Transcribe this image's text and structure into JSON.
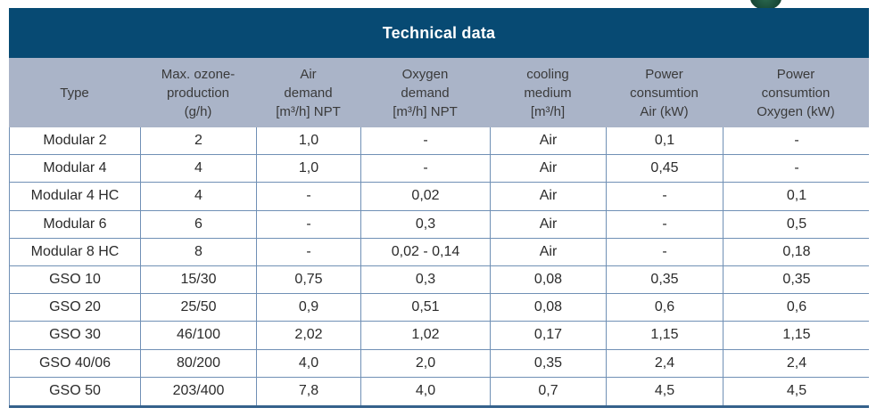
{
  "title": "Technical data",
  "colors": {
    "title_bar_bg": "#074a73",
    "title_text": "#ffffff",
    "header_band_bg": "#aab4c8",
    "header_text": "#3a3a3a",
    "grid_line": "#7090b5",
    "bottom_rule": "#35618c",
    "body_text": "#2b2b2b",
    "logo_green": "#1b4f3c"
  },
  "columns": [
    {
      "lines": [
        "Type"
      ]
    },
    {
      "lines": [
        "Max. ozone-",
        "production",
        "(g/h)"
      ]
    },
    {
      "lines": [
        "Air",
        "demand",
        "[m³/h] NPT"
      ]
    },
    {
      "lines": [
        "Oxygen",
        "demand",
        "[m³/h] NPT"
      ]
    },
    {
      "lines": [
        "cooling",
        "medium",
        "[m³/h]"
      ]
    },
    {
      "lines": [
        "Power",
        "consumtion",
        "Air (kW)"
      ]
    },
    {
      "lines": [
        "Power",
        "consumtion",
        "Oxygen (kW)"
      ]
    }
  ],
  "rows": [
    [
      "Modular 2",
      "2",
      "1,0",
      "-",
      "Air",
      "0,1",
      "-"
    ],
    [
      "Modular 4",
      "4",
      "1,0",
      "-",
      "Air",
      "0,45",
      "-"
    ],
    [
      "Modular 4 HC",
      "4",
      "-",
      "0,02",
      "Air",
      "-",
      "0,1"
    ],
    [
      "Modular 6",
      "6",
      "-",
      "0,3",
      "Air",
      "-",
      "0,5"
    ],
    [
      "Modular 8 HC",
      "8",
      "-",
      "0,02 - 0,14",
      "Air",
      "-",
      "0,18"
    ],
    [
      "GSO 10",
      "15/30",
      "0,75",
      "0,3",
      "0,08",
      "0,35",
      "0,35"
    ],
    [
      "GSO 20",
      "25/50",
      "0,9",
      "0,51",
      "0,08",
      "0,6",
      "0,6"
    ],
    [
      "GSO 30",
      "46/100",
      "2,02",
      "1,02",
      "0,17",
      "1,15",
      "1,15"
    ],
    [
      "GSO 40/06",
      "80/200",
      "4,0",
      "2,0",
      "0,35",
      "2,4",
      "2,4"
    ],
    [
      "GSO 50",
      "203/400",
      "7,8",
      "4,0",
      "0,7",
      "4,5",
      "4,5"
    ]
  ]
}
